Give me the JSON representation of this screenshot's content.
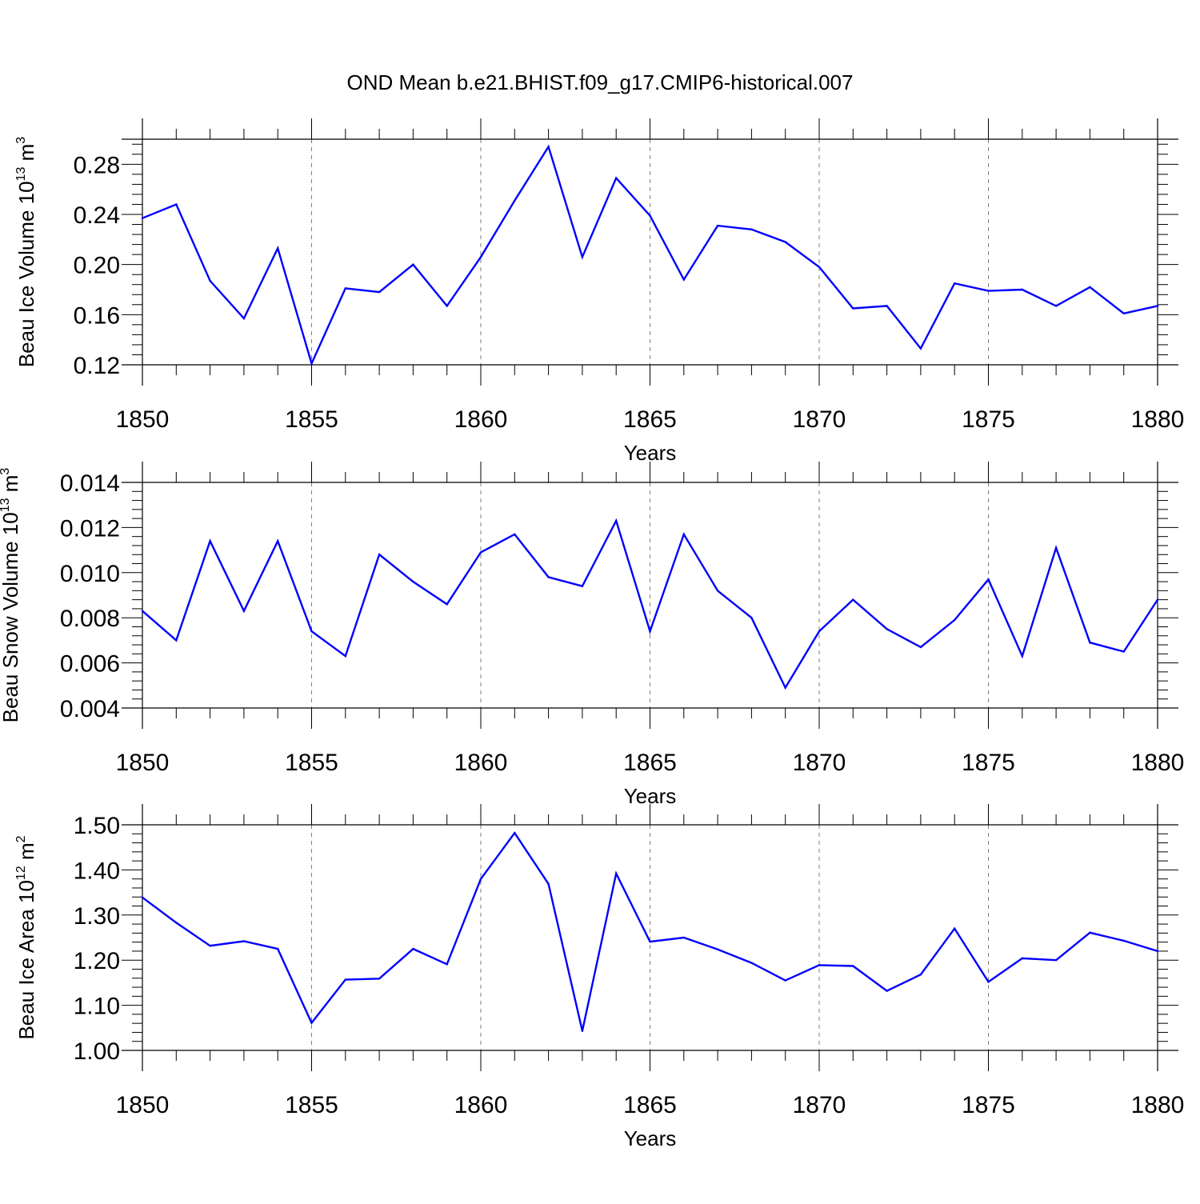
{
  "title": "OND Mean b.e21.BHIST.f09_g17.CMIP6-historical.007",
  "colors": {
    "series": "#0000ff",
    "axes": "#000000",
    "grid": "#7f7f7f"
  },
  "chart_data": [
    {
      "type": "line",
      "ylabel": {
        "main": "Beau Ice Volume 10",
        "sup": "13",
        "unit": " m",
        "unit_sup": "3"
      },
      "xlabel": "Years",
      "xlim": [
        1850,
        1880
      ],
      "ylim": [
        0.12,
        0.3
      ],
      "yticks": [
        0.12,
        0.16,
        0.2,
        0.24,
        0.28
      ],
      "ytick_labels": [
        "0.12",
        "0.16",
        "0.20",
        "0.24",
        "0.28"
      ],
      "xticks": [
        1850,
        1855,
        1860,
        1865,
        1870,
        1875,
        1880
      ],
      "xtick_labels": [
        "1850",
        "1855",
        "1860",
        "1865",
        "1870",
        "1875",
        "1880"
      ],
      "grid": "dashed vertical at major x ticks",
      "x": [
        1850,
        1851,
        1852,
        1853,
        1854,
        1855,
        1856,
        1857,
        1858,
        1859,
        1860,
        1861,
        1862,
        1863,
        1864,
        1865,
        1866,
        1867,
        1868,
        1869,
        1870,
        1871,
        1872,
        1873,
        1874,
        1875,
        1876,
        1877,
        1878,
        1879,
        1880
      ],
      "values": [
        0.237,
        0.248,
        0.187,
        0.157,
        0.213,
        0.121,
        0.181,
        0.178,
        0.2,
        0.167,
        0.206,
        0.251,
        0.294,
        0.206,
        0.269,
        0.239,
        0.188,
        0.231,
        0.228,
        0.218,
        0.198,
        0.165,
        0.167,
        0.133,
        0.185,
        0.179,
        0.18,
        0.167,
        0.182,
        0.161,
        0.167
      ]
    },
    {
      "type": "line",
      "ylabel": {
        "main": "Beau Snow Volume 10",
        "sup": "13",
        "unit": " m",
        "unit_sup": "3"
      },
      "xlabel": "Years",
      "xlim": [
        1850,
        1880
      ],
      "ylim": [
        0.004,
        0.014
      ],
      "yticks": [
        0.004,
        0.006,
        0.008,
        0.01,
        0.012,
        0.014
      ],
      "ytick_labels": [
        "0.004",
        "0.006",
        "0.008",
        "0.010",
        "0.012",
        "0.014"
      ],
      "xticks": [
        1850,
        1855,
        1860,
        1865,
        1870,
        1875,
        1880
      ],
      "xtick_labels": [
        "1850",
        "1855",
        "1860",
        "1865",
        "1870",
        "1875",
        "1880"
      ],
      "grid": "dashed vertical at major x ticks",
      "x": [
        1850,
        1851,
        1852,
        1853,
        1854,
        1855,
        1856,
        1857,
        1858,
        1859,
        1860,
        1861,
        1862,
        1863,
        1864,
        1865,
        1866,
        1867,
        1868,
        1869,
        1870,
        1871,
        1872,
        1873,
        1874,
        1875,
        1876,
        1877,
        1878,
        1879,
        1880
      ],
      "values": [
        0.0083,
        0.007,
        0.0114,
        0.0083,
        0.0114,
        0.0074,
        0.0063,
        0.0108,
        0.0096,
        0.0086,
        0.0109,
        0.0117,
        0.0098,
        0.0094,
        0.0123,
        0.0074,
        0.0117,
        0.0092,
        0.008,
        0.0049,
        0.0074,
        0.0088,
        0.0075,
        0.0067,
        0.0079,
        0.0097,
        0.0063,
        0.0111,
        0.0069,
        0.0065,
        0.0088
      ]
    },
    {
      "type": "line",
      "ylabel": {
        "main": "Beau Ice Area 10",
        "sup": "12",
        "unit": " m",
        "unit_sup": "2"
      },
      "xlabel": "Years",
      "xlim": [
        1850,
        1880
      ],
      "ylim": [
        1.0,
        1.5
      ],
      "yticks": [
        1.0,
        1.1,
        1.2,
        1.3,
        1.4,
        1.5
      ],
      "ytick_labels": [
        "1.00",
        "1.10",
        "1.20",
        "1.30",
        "1.40",
        "1.50"
      ],
      "xticks": [
        1850,
        1855,
        1860,
        1865,
        1870,
        1875,
        1880
      ],
      "xtick_labels": [
        "1850",
        "1855",
        "1860",
        "1865",
        "1870",
        "1875",
        "1880"
      ],
      "grid": "dashed vertical at major x ticks",
      "x": [
        1850,
        1851,
        1852,
        1853,
        1854,
        1855,
        1856,
        1857,
        1858,
        1859,
        1860,
        1861,
        1862,
        1863,
        1864,
        1865,
        1866,
        1867,
        1868,
        1869,
        1870,
        1871,
        1872,
        1873,
        1874,
        1875,
        1876,
        1877,
        1878,
        1879,
        1880
      ],
      "values": [
        1.339,
        1.283,
        1.232,
        1.242,
        1.225,
        1.061,
        1.157,
        1.159,
        1.225,
        1.191,
        1.38,
        1.482,
        1.369,
        1.043,
        1.392,
        1.241,
        1.25,
        1.224,
        1.194,
        1.155,
        1.189,
        1.187,
        1.132,
        1.168,
        1.27,
        1.152,
        1.204,
        1.2,
        1.261,
        1.243,
        1.22
      ]
    }
  ]
}
